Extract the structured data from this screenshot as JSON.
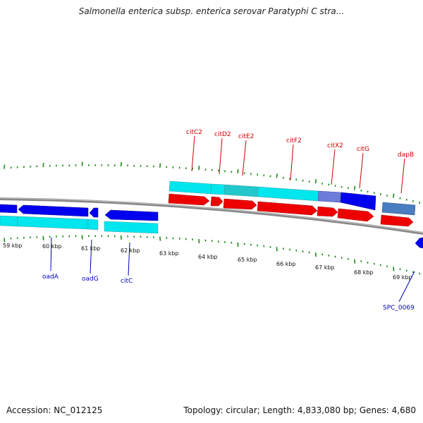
{
  "title": "Salmonella enterica subsp. enterica serovar Paratyphi C stra...",
  "footer": {
    "accession": "Accession: NC_012125",
    "summary": "Topology: circular; Length: 4,833,080 bp; Genes: 4,680"
  },
  "colors": {
    "backbone": "#8a8a8a",
    "tick": "#1a8a1a",
    "forward_label": "#cc0000",
    "reverse_label": "#0000bb",
    "cds_red": "#ee0000",
    "cds_blue": "#0000ee",
    "rna_cyan": "#00e6ee",
    "steel": "#4a7cc0"
  },
  "tick_labels": [
    "59 kbp",
    "60 kbp",
    "61 kbp",
    "62 kbp",
    "63 kbp",
    "64 kbp",
    "65 kbp",
    "66 kbp",
    "67 kbp",
    "68 kbp",
    "69 kbp"
  ],
  "forward_labels": [
    "citC2",
    "citD2",
    "citE2",
    "citF2",
    "citX2",
    "citG",
    "dapB"
  ],
  "reverse_labels": [
    "oadA",
    "oadG",
    "citC",
    "SPC_0069"
  ]
}
